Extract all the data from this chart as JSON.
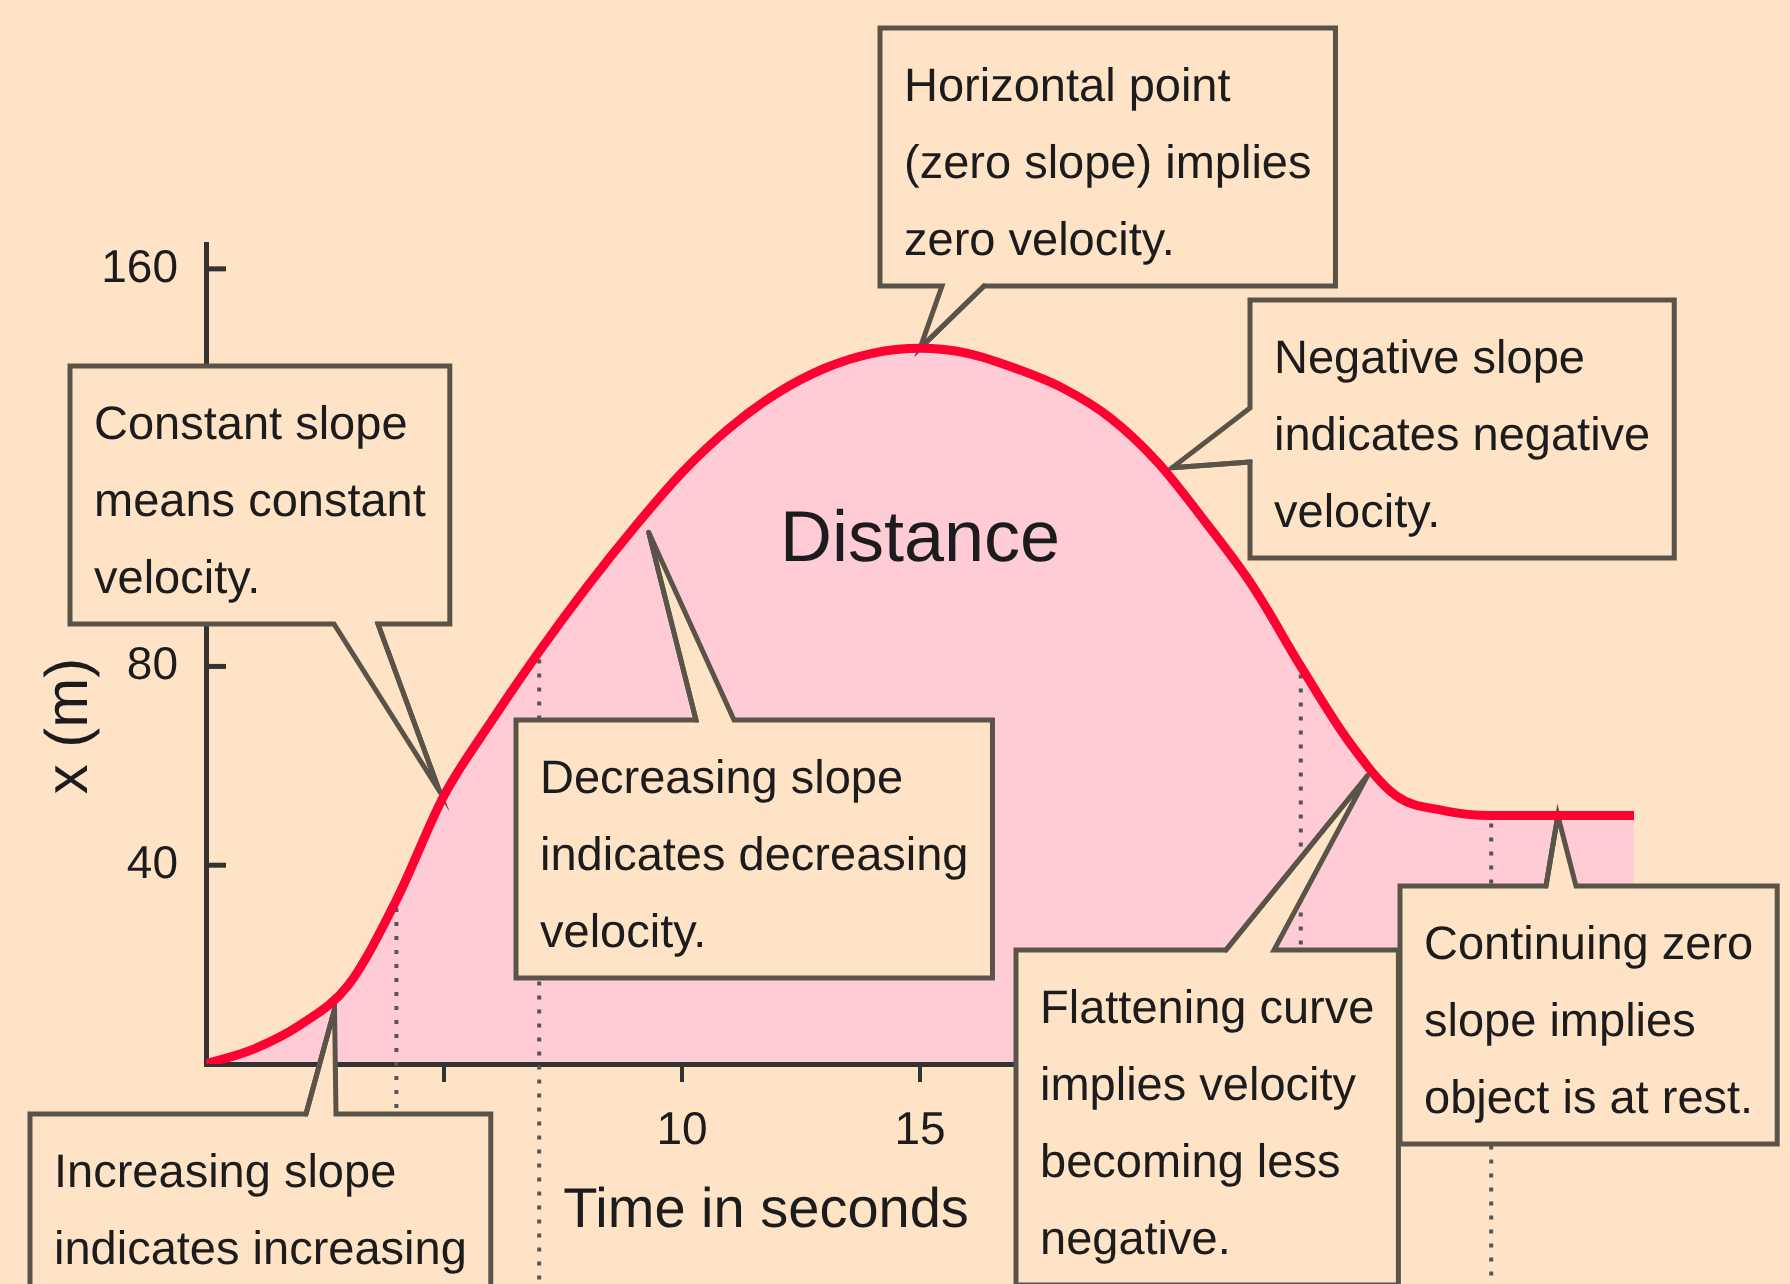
{
  "chart_data": {
    "type": "area",
    "xlabel": "Time in seconds",
    "ylabel": "x (m)",
    "x": [
      0,
      1,
      2,
      3,
      4,
      5,
      6,
      7,
      8,
      9,
      10,
      11,
      12,
      13,
      14,
      15,
      16,
      17,
      18,
      19,
      20,
      21,
      22,
      23,
      24,
      25,
      26,
      27,
      28,
      29,
      30
    ],
    "series": [
      {
        "name": "Distance",
        "color": "#ff0033",
        "values": [
          0,
          3,
          8,
          16,
          33,
          54,
          69,
          83,
          96,
          108,
          119,
          128,
          135,
          140,
          143,
          144,
          143,
          140,
          136,
          130,
          121,
          109,
          96,
          80,
          65,
          54,
          51,
          50,
          50,
          50,
          50
        ]
      }
    ],
    "xlim": [
      0,
      30
    ],
    "xticks": [
      {
        "value": 5,
        "label": null
      },
      10,
      15
    ],
    "ylim": [
      0,
      165
    ],
    "yticks": [
      40,
      80,
      160
    ],
    "ref_lines": [
      {
        "axis": "x",
        "value": 4,
        "line_style": "dotted",
        "color": "#555555"
      },
      {
        "axis": "x",
        "value": 7,
        "line_style": "dotted",
        "color": "#555555"
      },
      {
        "axis": "x",
        "value": 23,
        "line_style": "dotted",
        "color": "#555555"
      },
      {
        "axis": "x",
        "value": 27,
        "line_style": "dotted",
        "color": "#555555"
      }
    ],
    "annotations": [
      {
        "text": "Horizontal point (zero slope) implies zero velocity.",
        "x": 15,
        "y": 144
      },
      {
        "text": "Negative slope indicates negative velocity.",
        "x": 20.3,
        "y": 120
      },
      {
        "text": "Constant slope means constant velocity.",
        "x": 4.9,
        "y": 55
      },
      {
        "text": "Decreasing slope indicates decreasing velocity.",
        "x": 9.3,
        "y": 107
      },
      {
        "text": "Increasing slope indicates increasing",
        "x": 2.7,
        "y": 11
      },
      {
        "text": "Flattening curve implies velocity becoming less negative.",
        "x": 24.4,
        "y": 58
      },
      {
        "text": "Continuing zero slope implies object is at rest.",
        "x": 28.4,
        "y": 50
      }
    ]
  }
}
